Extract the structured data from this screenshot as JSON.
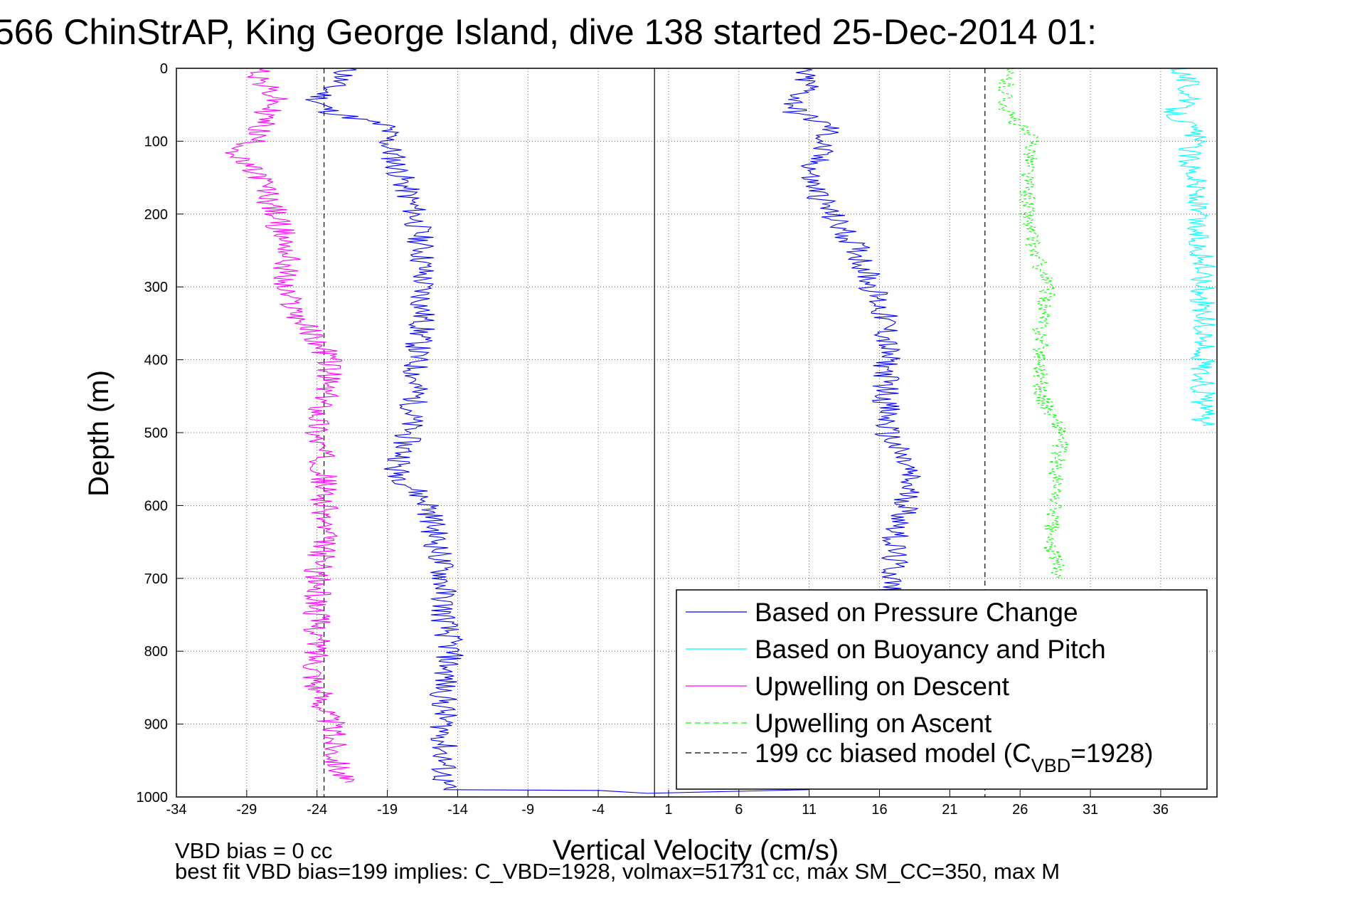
{
  "chart_data": {
    "type": "line",
    "title": "566 ChinStrAP, King George Island, dive 138 started 25-Dec-2014 01:",
    "xlabel": "Vertical Velocity (cm/s)",
    "ylabel": "Depth (m)",
    "xlim": [
      -34,
      40
    ],
    "ylim": [
      0,
      1000
    ],
    "y_reversed": true,
    "grid": true,
    "xticks": [
      -34,
      -29,
      -24,
      -19,
      -14,
      -9,
      -4,
      1,
      6,
      11,
      16,
      21,
      26,
      31,
      36
    ],
    "yticks": [
      0,
      100,
      200,
      300,
      400,
      500,
      600,
      700,
      800,
      900,
      1000
    ],
    "legend_position": "bottom-right",
    "legend": [
      {
        "label": "Based on Pressure Change",
        "color": "#0000ff",
        "style": "solid"
      },
      {
        "label": "Based on Buoyancy and Pitch",
        "color": "#00ffff",
        "style": "solid"
      },
      {
        "label": "Upwelling on Descent",
        "color": "#ff00ff",
        "style": "solid"
      },
      {
        "label": "Upwelling on Ascent",
        "color": "#00ff00",
        "style": "dashed"
      },
      {
        "label_main": "199 cc biased model (C",
        "label_sub": "VBD",
        "label_end": "=1928)",
        "color": "#000000",
        "style": "dashed"
      }
    ],
    "series": [
      {
        "color": "#0000ff",
        "style": "solid",
        "depth": [
          0,
          10,
          25,
          45,
          60,
          80,
          100,
          150,
          200,
          250,
          300,
          350,
          400,
          450,
          500,
          540,
          550,
          600,
          650,
          700,
          750,
          800,
          850,
          900,
          950,
          990
        ],
        "velocity": [
          -22,
          -22,
          -23,
          -24,
          -23,
          -19,
          -19,
          -18,
          -17,
          -16.5,
          -16.5,
          -16.5,
          -17,
          -17,
          -17.5,
          -18,
          -18.5,
          -16,
          -15.5,
          -15,
          -15,
          -14.5,
          -15,
          -15,
          -15,
          -15
        ]
      },
      {
        "color": "#0000ff",
        "style": "solid",
        "depth": [
          0,
          10,
          25,
          45,
          60,
          80,
          100,
          150,
          200,
          250,
          300,
          350,
          400,
          450,
          500,
          550,
          600,
          650,
          700,
          720
        ],
        "velocity": [
          10.5,
          10.5,
          11,
          10,
          10,
          12.5,
          12,
          11,
          12.5,
          14.5,
          15.5,
          16.5,
          16.5,
          16.5,
          16.5,
          18,
          18,
          17,
          17,
          16.5
        ]
      },
      {
        "color": "#ff00ff",
        "style": "solid",
        "depth": [
          0,
          20,
          40,
          60,
          80,
          100,
          120,
          150,
          200,
          250,
          300,
          350,
          400,
          450,
          500,
          550,
          600,
          650,
          700,
          750,
          800,
          850,
          900,
          950,
          980
        ],
        "velocity": [
          -28,
          -28,
          -27,
          -27.5,
          -28,
          -28.5,
          -30,
          -28,
          -27,
          -26,
          -26.5,
          -25,
          -23,
          -23.5,
          -24,
          -23.5,
          -23.5,
          -23.5,
          -24,
          -24,
          -24,
          -24,
          -23,
          -22.5,
          -22
        ]
      },
      {
        "color": "#00ff00",
        "style": "dashed",
        "depth": [
          0,
          20,
          40,
          60,
          80,
          100,
          150,
          200,
          250,
          300,
          350,
          400,
          450,
          500,
          550,
          600,
          650,
          700
        ],
        "velocity": [
          25,
          25,
          25,
          25,
          26,
          27,
          26.5,
          26.5,
          27,
          28,
          27.5,
          27.5,
          27.5,
          29,
          28.5,
          28.5,
          28,
          29
        ]
      },
      {
        "color": "#00ffff",
        "style": "solid",
        "depth": [
          0,
          20,
          40,
          60,
          90,
          120,
          150,
          200,
          220,
          270,
          400,
          440,
          490
        ],
        "velocity": [
          37.5,
          38,
          38,
          37,
          38.5,
          38,
          38.5,
          38.5,
          38.5,
          39,
          39,
          39,
          39
        ]
      }
    ],
    "reference_lines": [
      {
        "color": "#000000",
        "style": "dashed",
        "velocity": -23.5
      },
      {
        "color": "#000000",
        "style": "dashed",
        "velocity": 23.5
      },
      {
        "color": "#000000",
        "style": "solid",
        "velocity": 0
      }
    ],
    "footnotes": [
      "VBD bias = 0 cc",
      "best fit VBD bias=199 implies: C_VBD=1928, volmax=51731 cc, max SM_CC=350, max M"
    ]
  }
}
